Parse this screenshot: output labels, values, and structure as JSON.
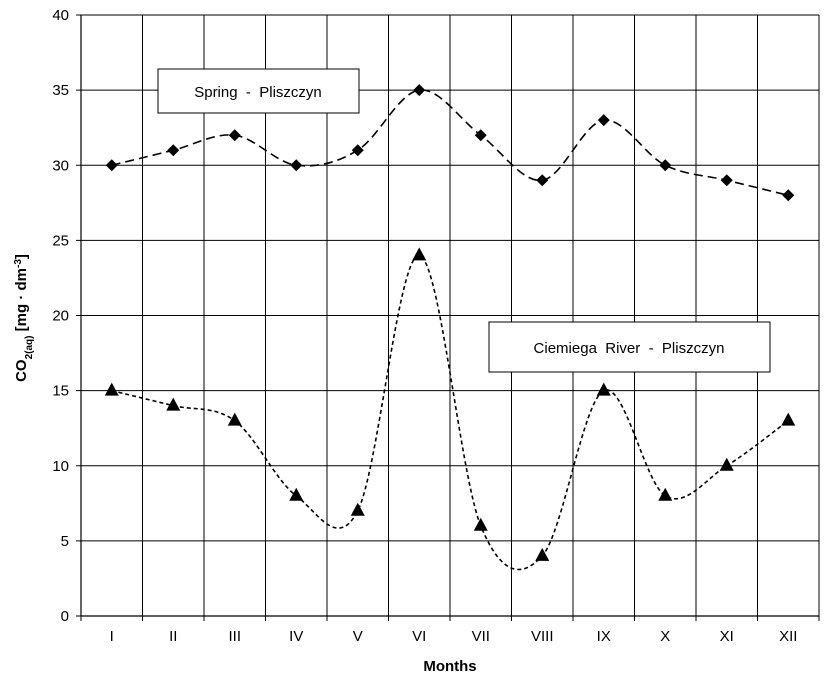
{
  "chart_data": {
    "type": "line",
    "title": "",
    "xlabel": "Months",
    "ylabel": {
      "main": "CO",
      "sub": "2(aq)",
      "unit_open": " [mg · dm",
      "unit_sup": "-3",
      "unit_close": "]"
    },
    "categories": [
      "I",
      "II",
      "III",
      "IV",
      "V",
      "VI",
      "VII",
      "VIII",
      "IX",
      "X",
      "XI",
      "XII"
    ],
    "ylim": [
      0,
      40
    ],
    "yticks": [
      0,
      5,
      10,
      15,
      20,
      25,
      30,
      35,
      40
    ],
    "grid": true,
    "series": [
      {
        "name": "Spring  -  Pliszczyn",
        "marker": "diamond",
        "line_style": "dashed",
        "color": "#000000",
        "values": [
          30,
          31,
          32,
          30,
          31,
          35,
          32,
          29,
          33,
          30,
          29,
          28
        ]
      },
      {
        "name": "Ciemiega  River  -  Pliszczyn",
        "marker": "triangle",
        "line_style": "dotted",
        "color": "#000000",
        "values": [
          15,
          14,
          13,
          8,
          7,
          24,
          6,
          4,
          15,
          8,
          10,
          13
        ]
      }
    ]
  }
}
